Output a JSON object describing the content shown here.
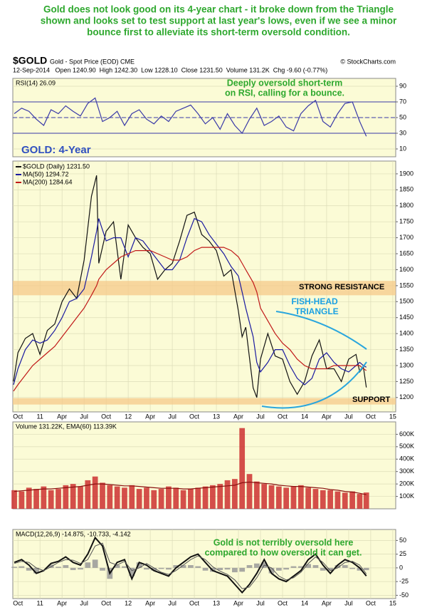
{
  "headline": [
    "Gold does not look good on its 4-year chart - it broke down from the Triangle",
    "shown and looks set to test support at last year's lows, even if we see a minor",
    "bounce first to alleviate its short-term oversold condition."
  ],
  "header": {
    "symbol": "$GOLD",
    "name": "Gold - Spot Price (EOD) CME",
    "source": "© StockCharts.com",
    "quote": "12-Sep-2014   Open 1240.90  High 1242.30  Low 1228.10  Close 1231.50  Volume 131.2K  Chg -9.60 (-0.77%)"
  },
  "chart_data": [
    {
      "type": "line",
      "title": "RSI(14) 26.09",
      "annotation": [
        "Deeply oversold short-term",
        "on RSI, calling for a bounce."
      ],
      "xlim": [
        -0.7,
        51.4
      ],
      "ylim": [
        0,
        100
      ],
      "yticks": [
        10,
        30,
        50,
        70,
        90
      ],
      "reference_lines": [
        30,
        50,
        70
      ],
      "grid": true,
      "x": [
        -0.5,
        0.5,
        1.5,
        2.5,
        3.5,
        4.5,
        5.5,
        6.5,
        7.5,
        8.5,
        9.5,
        10.5,
        11.5,
        12.5,
        13.5,
        14.5,
        15.5,
        16.5,
        17.5,
        18.5,
        19.5,
        20.5,
        21.5,
        22.5,
        23.5,
        24.5,
        25.5,
        26.5,
        27.5,
        28.5,
        29.5,
        30.5,
        31.5,
        32.5,
        33.5,
        34.5,
        35.5,
        36.5,
        37.5,
        38.5,
        39.5,
        40.5,
        41.5,
        42.5,
        43.5,
        44.5,
        45.5,
        46.5,
        47.4
      ],
      "series": [
        {
          "color": "#3a3aa8",
          "values": [
            55,
            62,
            58,
            48,
            40,
            60,
            55,
            65,
            58,
            52,
            68,
            75,
            45,
            50,
            58,
            40,
            55,
            60,
            48,
            42,
            52,
            45,
            58,
            62,
            66,
            55,
            42,
            50,
            35,
            55,
            40,
            30,
            48,
            62,
            40,
            45,
            52,
            38,
            33,
            55,
            65,
            72,
            45,
            38,
            55,
            68,
            70,
            45,
            26.09
          ]
        }
      ]
    },
    {
      "type": "line",
      "annotation": "GOLD: 4-Year",
      "triangle_label": [
        "FISH-HEAD",
        "TRIANGLE"
      ],
      "xlim": [
        -0.7,
        51.4
      ],
      "ylim": [
        1155,
        1940
      ],
      "yticks": [
        1200,
        1250,
        1300,
        1350,
        1400,
        1450,
        1500,
        1550,
        1600,
        1650,
        1700,
        1750,
        1800,
        1850,
        1900
      ],
      "grid": true,
      "xticks": [
        {
          "value": 0,
          "label": "Oct"
        },
        {
          "value": 3,
          "label": "11"
        },
        {
          "value": 6,
          "label": "Apr"
        },
        {
          "value": 9,
          "label": "Jul"
        },
        {
          "value": 12,
          "label": "Oct"
        },
        {
          "value": 15,
          "label": "12"
        },
        {
          "value": 18,
          "label": "Apr"
        },
        {
          "value": 21,
          "label": "Jul"
        },
        {
          "value": 24,
          "label": "Oct"
        },
        {
          "value": 27,
          "label": "13"
        },
        {
          "value": 30,
          "label": "Apr"
        },
        {
          "value": 33,
          "label": "Jul"
        },
        {
          "value": 36,
          "label": "Oct"
        },
        {
          "value": 39,
          "label": "14"
        },
        {
          "value": 42,
          "label": "Apr"
        },
        {
          "value": 45,
          "label": "Jul"
        },
        {
          "value": 48,
          "label": "Oct"
        },
        {
          "value": 51,
          "label": "15"
        }
      ],
      "bands": [
        {
          "label": "STRONG RESISTANCE",
          "range": [
            1520,
            1565
          ]
        },
        {
          "label": "SUPPORT",
          "range": [
            1178,
            1198
          ]
        }
      ],
      "x": [
        -0.6,
        0,
        1,
        2,
        3,
        4,
        5,
        6,
        7,
        8,
        9,
        10,
        10.7,
        11,
        12,
        13,
        14,
        15,
        16,
        17,
        18,
        19,
        20,
        21,
        22,
        23,
        24,
        25,
        26,
        27,
        28,
        29,
        30,
        30.5,
        31,
        32,
        32.5,
        33,
        34,
        35,
        36,
        37,
        38,
        39,
        40,
        41,
        42,
        43,
        44,
        45,
        46,
        46.5,
        47,
        47.4
      ],
      "series": [
        {
          "name": "$GOLD (Daily) 1231.50",
          "color": "#111111",
          "values": [
            1250,
            1340,
            1385,
            1400,
            1335,
            1410,
            1430,
            1500,
            1540,
            1510,
            1630,
            1830,
            1895,
            1620,
            1720,
            1750,
            1570,
            1740,
            1700,
            1670,
            1650,
            1570,
            1600,
            1620,
            1690,
            1770,
            1780,
            1710,
            1690,
            1660,
            1580,
            1600,
            1470,
            1390,
            1420,
            1230,
            1200,
            1320,
            1400,
            1330,
            1320,
            1250,
            1210,
            1250,
            1330,
            1380,
            1290,
            1290,
            1250,
            1320,
            1335,
            1280,
            1295,
            1231.5
          ]
        },
        {
          "name": "MA(50) 1294.72",
          "color": "#1a1aa0",
          "values": [
            1240,
            1290,
            1350,
            1380,
            1370,
            1380,
            1410,
            1450,
            1500,
            1510,
            1540,
            1640,
            1720,
            1760,
            1690,
            1700,
            1700,
            1640,
            1700,
            1690,
            1660,
            1630,
            1600,
            1600,
            1630,
            1700,
            1760,
            1750,
            1710,
            1680,
            1650,
            1610,
            1580,
            1530,
            1480,
            1390,
            1310,
            1280,
            1310,
            1350,
            1350,
            1300,
            1260,
            1240,
            1260,
            1320,
            1340,
            1310,
            1290,
            1280,
            1300,
            1310,
            1300,
            1294.72
          ]
        },
        {
          "name": "MA(200) 1284.64",
          "color": "#c01818",
          "values": [
            1220,
            1240,
            1270,
            1300,
            1320,
            1340,
            1360,
            1390,
            1420,
            1450,
            1480,
            1520,
            1550,
            1570,
            1600,
            1620,
            1640,
            1650,
            1660,
            1660,
            1660,
            1650,
            1640,
            1630,
            1630,
            1640,
            1660,
            1670,
            1670,
            1670,
            1670,
            1660,
            1640,
            1620,
            1600,
            1560,
            1530,
            1480,
            1440,
            1400,
            1370,
            1350,
            1320,
            1300,
            1290,
            1290,
            1290,
            1300,
            1300,
            1300,
            1300,
            1300,
            1290,
            1284.64
          ]
        }
      ]
    },
    {
      "type": "bar",
      "title": "Volume 131.22K, EMA(60) 113.39K",
      "xlim": [
        -0.7,
        51.4
      ],
      "ylim": [
        0,
        700000
      ],
      "grid": true,
      "yticks": [
        {
          "value": 100000,
          "label": "100K"
        },
        {
          "value": 200000,
          "label": "200K"
        },
        {
          "value": 300000,
          "label": "300K"
        },
        {
          "value": 400000,
          "label": "400K"
        },
        {
          "value": 500000,
          "label": "500K"
        },
        {
          "value": 600000,
          "label": "600K"
        }
      ],
      "x": [
        -0.5,
        0.5,
        1.5,
        2.5,
        3.5,
        4.5,
        5.5,
        6.5,
        7.5,
        8.5,
        9.5,
        10.5,
        11.5,
        12.5,
        13.5,
        14.5,
        15.5,
        16.5,
        17.5,
        18.5,
        19.5,
        20.5,
        21.5,
        22.5,
        23.5,
        24.5,
        25.5,
        26.5,
        27.5,
        28.5,
        29.5,
        30.5,
        31.5,
        32.5,
        33.5,
        34.5,
        35.5,
        36.5,
        37.5,
        38.5,
        39.5,
        40.5,
        41.5,
        42.5,
        43.5,
        44.5,
        45.5,
        46.5,
        47.4
      ],
      "series": [
        {
          "style": "bar",
          "color": "#cc3030",
          "values": [
            150000,
            140000,
            170000,
            160000,
            180000,
            150000,
            160000,
            190000,
            200000,
            180000,
            230000,
            260000,
            210000,
            190000,
            180000,
            170000,
            190000,
            160000,
            170000,
            150000,
            160000,
            180000,
            170000,
            150000,
            160000,
            170000,
            180000,
            190000,
            200000,
            230000,
            240000,
            650000,
            280000,
            220000,
            200000,
            190000,
            180000,
            170000,
            180000,
            190000,
            170000,
            160000,
            150000,
            150000,
            140000,
            130000,
            140000,
            120000,
            131220
          ]
        },
        {
          "style": "line",
          "color": "#8a1010",
          "values": [
            140000,
            145000,
            150000,
            155000,
            160000,
            160000,
            165000,
            170000,
            175000,
            180000,
            190000,
            200000,
            200000,
            195000,
            190000,
            185000,
            185000,
            180000,
            175000,
            170000,
            165000,
            165000,
            165000,
            160000,
            160000,
            165000,
            170000,
            175000,
            180000,
            185000,
            190000,
            210000,
            215000,
            210000,
            205000,
            200000,
            190000,
            185000,
            180000,
            180000,
            175000,
            170000,
            165000,
            155000,
            150000,
            140000,
            135000,
            125000,
            113390
          ]
        }
      ]
    },
    {
      "type": "line",
      "title": "MACD(12,26,9) -14.875, -10.733, -4.142",
      "annotation": [
        "Gold is not terribly oversold here",
        "compared to how oversold it can get."
      ],
      "xlim": [
        -0.7,
        51.4
      ],
      "ylim": [
        -56,
        70
      ],
      "yticks": [
        -50,
        -25,
        0,
        25,
        50
      ],
      "grid": true,
      "xticks": [
        {
          "value": 0,
          "label": "Oct"
        },
        {
          "value": 3,
          "label": "11"
        },
        {
          "value": 6,
          "label": "Apr"
        },
        {
          "value": 9,
          "label": "Jul"
        },
        {
          "value": 12,
          "label": "Oct"
        },
        {
          "value": 15,
          "label": "12"
        },
        {
          "value": 18,
          "label": "Apr"
        },
        {
          "value": 21,
          "label": "Jul"
        },
        {
          "value": 24,
          "label": "Oct"
        },
        {
          "value": 27,
          "label": "13"
        },
        {
          "value": 30,
          "label": "Apr"
        },
        {
          "value": 33,
          "label": "Jul"
        },
        {
          "value": 36,
          "label": "Oct"
        },
        {
          "value": 39,
          "label": "14"
        },
        {
          "value": 42,
          "label": "Apr"
        },
        {
          "value": 45,
          "label": "Jul"
        },
        {
          "value": 48,
          "label": "Oct"
        },
        {
          "value": 51,
          "label": "15"
        }
      ],
      "x": [
        -0.5,
        0.5,
        1.5,
        2.5,
        3.5,
        4.5,
        5.5,
        6.5,
        7.5,
        8.5,
        9.5,
        10.5,
        11.5,
        12.5,
        13.5,
        14.5,
        15.5,
        16.5,
        17.5,
        18.5,
        19.5,
        20.5,
        21.5,
        22.5,
        23.5,
        24.5,
        25.5,
        26.5,
        27.5,
        28.5,
        29.5,
        30.5,
        31.5,
        32.5,
        33.5,
        34.5,
        35.5,
        36.5,
        37.5,
        38.5,
        39.5,
        40.5,
        41.5,
        42.5,
        43.5,
        44.5,
        45.5,
        46.5,
        47.4
      ],
      "series": [
        {
          "style": "bar",
          "color": "#999999",
          "values": [
            2,
            3,
            -5,
            -10,
            0,
            6,
            2,
            5,
            -4,
            -3,
            10,
            15,
            -5,
            -20,
            5,
            3,
            -15,
            10,
            -3,
            -5,
            -2,
            -3,
            5,
            5,
            5,
            3,
            -5,
            -7,
            -4,
            -3,
            -8,
            -7,
            5,
            8,
            10,
            -10,
            -5,
            -3,
            3,
            3,
            7,
            5,
            -5,
            -5,
            5,
            5,
            -2,
            -5,
            -4.142
          ]
        },
        {
          "style": "line",
          "color": "#111111",
          "width": 2,
          "values": [
            10,
            15,
            5,
            -10,
            -5,
            8,
            12,
            20,
            10,
            5,
            25,
            55,
            40,
            -10,
            10,
            15,
            -20,
            10,
            5,
            -5,
            -10,
            -15,
            0,
            10,
            20,
            25,
            10,
            -5,
            -10,
            -15,
            -30,
            -45,
            -30,
            -10,
            15,
            -10,
            -20,
            -25,
            -15,
            -5,
            15,
            25,
            5,
            -10,
            5,
            15,
            10,
            0,
            -14.875
          ]
        },
        {
          "style": "line",
          "color": "#555555",
          "width": 1,
          "values": [
            8,
            12,
            10,
            0,
            -5,
            2,
            10,
            15,
            14,
            8,
            15,
            40,
            45,
            10,
            5,
            12,
            -5,
            0,
            8,
            0,
            -8,
            -12,
            -5,
            5,
            15,
            22,
            15,
            2,
            -6,
            -12,
            -22,
            -38,
            -35,
            -18,
            5,
            0,
            -15,
            -22,
            -18,
            -8,
            8,
            20,
            10,
            -5,
            0,
            10,
            12,
            5,
            -10.733
          ]
        }
      ]
    }
  ]
}
